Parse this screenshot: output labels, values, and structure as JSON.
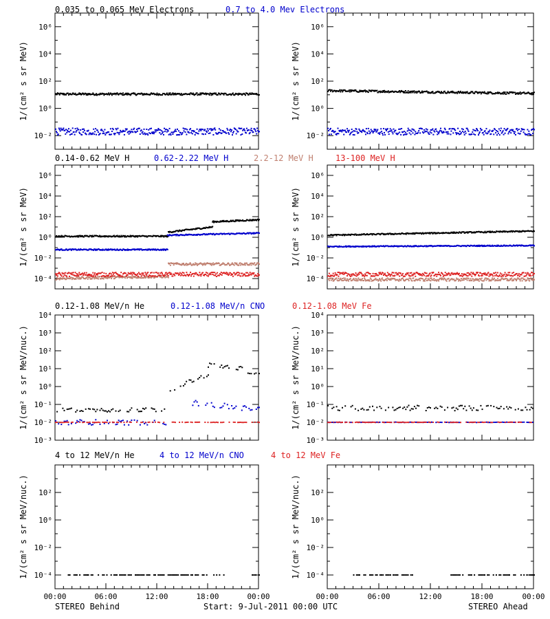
{
  "footer": {
    "left": "STEREO Behind",
    "center": "Start:  9-Jul-2011 00:00 UTC",
    "right": "STEREO Ahead"
  },
  "x_ticks": [
    "00:00",
    "06:00",
    "12:00",
    "18:00",
    "00:00"
  ],
  "colors": {
    "black": "#000000",
    "blue": "#0000cc",
    "brown": "#c08070",
    "red": "#dd2222"
  },
  "rows": [
    {
      "ylabel": "1/(cm² s sr MeV)",
      "yticks": [
        "10⁶",
        "10⁴",
        "10²",
        "10⁰",
        "10⁻²"
      ],
      "titles": [
        {
          "text": "0.035 to 0.065 MeV Electrons",
          "color": "#000000"
        },
        {
          "text": "0.7 to 4.0 Mev Electrons",
          "color": "#0000cc"
        }
      ]
    },
    {
      "ylabel": "1/(cm² s sr MeV)",
      "yticks": [
        "10⁶",
        "10⁴",
        "10²",
        "10⁰",
        "10⁻²",
        "10⁻⁴"
      ],
      "titles": [
        {
          "text": "0.14-0.62 MeV H",
          "color": "#000000"
        },
        {
          "text": "0.62-2.22 MeV H",
          "color": "#0000cc"
        },
        {
          "text": "2.2-12 MeV H",
          "color": "#c08070"
        },
        {
          "text": "13-100 MeV H",
          "color": "#dd2222"
        }
      ]
    },
    {
      "ylabel": "1/(cm² s sr MeV/nuc.)",
      "yticks": [
        "10⁴",
        "10³",
        "10²",
        "10¹",
        "10⁰",
        "10⁻¹",
        "10⁻²",
        "10⁻³"
      ],
      "titles": [
        {
          "text": "0.12-1.08 MeV/n He",
          "color": "#000000"
        },
        {
          "text": "0.12-1.08 MeV/n CNO",
          "color": "#0000cc"
        },
        {
          "text": "0.12-1.08 MeV Fe",
          "color": "#dd2222"
        }
      ]
    },
    {
      "ylabel": "1/(cm² s sr MeV/nuc.)",
      "yticks": [
        "10²",
        "10⁰",
        "10⁻²",
        "10⁻⁴"
      ],
      "titles": [
        {
          "text": "4 to 12 MeV/n He",
          "color": "#000000"
        },
        {
          "text": "4 to 12 MeV/n CNO",
          "color": "#0000cc"
        },
        {
          "text": "4 to 12 MeV Fe",
          "color": "#dd2222"
        }
      ]
    }
  ],
  "chart_data": {
    "type": "scatter",
    "x_unit": "hours UTC, 9-Jul-2011",
    "xlim": [
      0,
      24
    ],
    "log_y": true,
    "panels": [
      {
        "row": 0,
        "col": 0,
        "ylim_log10": [
          -3,
          7
        ],
        "series": [
          {
            "color": "#000000",
            "segments": [
              [
                0,
                24,
                1.05,
                1.05
              ]
            ],
            "jitter": 0.08
          },
          {
            "color": "#0000cc",
            "segments": [
              [
                0,
                24,
                -1.7,
                -1.7
              ]
            ],
            "jitter": 0.25
          }
        ]
      },
      {
        "row": 0,
        "col": 1,
        "ylim_log10": [
          -3,
          7
        ],
        "series": [
          {
            "color": "#000000",
            "segments": [
              [
                0,
                24,
                1.3,
                1.1
              ]
            ],
            "jitter": 0.08
          },
          {
            "color": "#0000cc",
            "segments": [
              [
                0,
                24,
                -1.7,
                -1.7
              ]
            ],
            "jitter": 0.25
          }
        ]
      },
      {
        "row": 1,
        "col": 0,
        "ylim_log10": [
          -5,
          7
        ],
        "series": [
          {
            "color": "#000000",
            "segments": [
              [
                0,
                13.3,
                0.1,
                0.1
              ],
              [
                13.3,
                18.5,
                0.5,
                1.0
              ],
              [
                18.5,
                24,
                1.5,
                1.7
              ]
            ],
            "jitter": 0.07
          },
          {
            "color": "#0000cc",
            "segments": [
              [
                0,
                13.2,
                -1.2,
                -1.2
              ],
              [
                13.2,
                24,
                0.2,
                0.4
              ]
            ],
            "jitter": 0.06
          },
          {
            "color": "#c08070",
            "segments": [
              [
                0,
                13.3,
                -4.0,
                -3.8
              ],
              [
                13.3,
                24,
                -2.6,
                -2.6
              ]
            ],
            "jitter": 0.12
          },
          {
            "color": "#dd2222",
            "segments": [
              [
                0,
                24,
                -3.6,
                -3.6
              ]
            ],
            "jitter": 0.2
          }
        ]
      },
      {
        "row": 1,
        "col": 1,
        "ylim_log10": [
          -5,
          7
        ],
        "series": [
          {
            "color": "#000000",
            "segments": [
              [
                0,
                24,
                0.2,
                0.6
              ]
            ],
            "jitter": 0.06
          },
          {
            "color": "#0000cc",
            "segments": [
              [
                0,
                24,
                -0.9,
                -0.8
              ]
            ],
            "jitter": 0.05
          },
          {
            "color": "#c08070",
            "segments": [
              [
                0,
                24,
                -4.1,
                -4.1
              ]
            ],
            "jitter": 0.15
          },
          {
            "color": "#dd2222",
            "segments": [
              [
                0,
                24,
                -3.6,
                -3.6
              ]
            ],
            "jitter": 0.2
          }
        ]
      },
      {
        "row": 2,
        "col": 0,
        "ylim_log10": [
          -3,
          4
        ],
        "series": [
          {
            "color": "#000000",
            "segments": [
              [
                0,
                13,
                -1.3,
                -1.3
              ],
              [
                13,
                18,
                -0.3,
                0.7
              ],
              [
                18,
                22,
                1.2,
                1.0
              ],
              [
                22.5,
                24,
                0.7,
                0.7
              ]
            ],
            "jitter": 0.12,
            "sparse": true
          },
          {
            "color": "#0000cc",
            "segments": [
              [
                0,
                13,
                -2.0,
                -2.0
              ],
              [
                16,
                24,
                -0.9,
                -1.3
              ]
            ],
            "jitter": 0.15,
            "sparse": true
          },
          {
            "color": "#dd2222",
            "segments": [
              [
                0,
                24,
                -2.0,
                -2.0
              ]
            ],
            "jitter": 0.01,
            "sparse": true
          }
        ]
      },
      {
        "row": 2,
        "col": 1,
        "ylim_log10": [
          -3,
          4
        ],
        "series": [
          {
            "color": "#000000",
            "segments": [
              [
                0,
                24,
                -1.2,
                -1.2
              ]
            ],
            "jitter": 0.15,
            "sparse": true
          },
          {
            "color": "#0000cc",
            "segments": [
              [
                0,
                24,
                -2.0,
                -2.0
              ]
            ],
            "jitter": 0.01,
            "sparse": true
          },
          {
            "color": "#dd2222",
            "segments": [
              [
                0,
                24,
                -2.0,
                -2.0
              ]
            ],
            "jitter": 0.01,
            "sparse": true
          }
        ]
      },
      {
        "row": 3,
        "col": 0,
        "ylim_log10": [
          -5,
          4
        ],
        "series": [
          {
            "color": "#000000",
            "segments": [
              [
                1.5,
                20,
                -4.0,
                -4.0
              ],
              [
                23,
                24,
                -4.0,
                -4.0
              ]
            ],
            "jitter": 0.0,
            "sparse": true
          }
        ]
      },
      {
        "row": 3,
        "col": 1,
        "ylim_log10": [
          -5,
          4
        ],
        "series": [
          {
            "color": "#000000",
            "segments": [
              [
                3,
                10,
                -4.0,
                -4.0
              ],
              [
                14,
                24,
                -4.0,
                -4.0
              ]
            ],
            "jitter": 0.0,
            "sparse": true
          }
        ]
      }
    ]
  }
}
